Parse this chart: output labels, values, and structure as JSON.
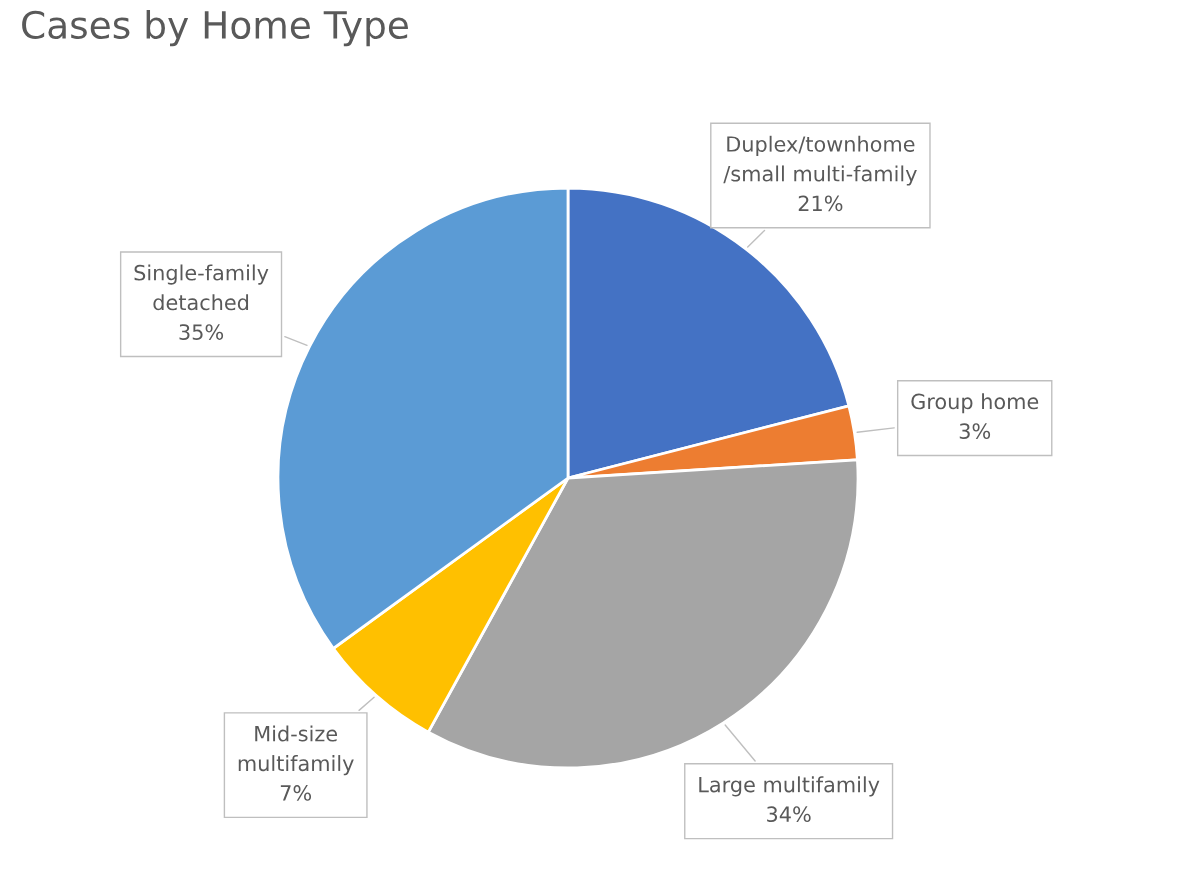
{
  "chart_data": {
    "type": "pie",
    "title": "Cases by Home Type",
    "categories": [
      "Duplex/townhome\n/small multi-family",
      "Group home",
      "Large multifamily",
      "Mid-size\nmultifamily",
      "Single-family\ndetached"
    ],
    "values": [
      21,
      3,
      34,
      7,
      35
    ],
    "value_labels": [
      "21%",
      "3%",
      "34%",
      "7%",
      "35%"
    ],
    "colors": [
      "#4472c4",
      "#ed7d31",
      "#a5a5a5",
      "#ffc000",
      "#5b9bd5"
    ]
  }
}
